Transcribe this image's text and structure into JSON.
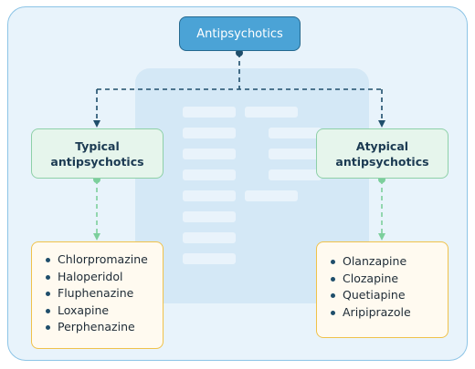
{
  "root": {
    "label": "Antipsychotics"
  },
  "categories": [
    {
      "label": "Typical\nantipsychotics",
      "drugs": [
        "Chlorpromazine",
        "Haloperidol",
        "Fluphenazine",
        "Loxapine",
        "Perphenazine"
      ]
    },
    {
      "label": "Atypical\nantipsychotics",
      "drugs": [
        "Olanzapine",
        "Clozapine",
        "Quetiapine",
        "Aripiprazole"
      ]
    }
  ],
  "colors": {
    "root_fill": "#4ba3d6",
    "root_border": "#26698f",
    "category_fill": "#e6f5ec",
    "category_border": "#8ed0a8",
    "list_fill": "#fffaf0",
    "list_border": "#f0c24a",
    "dark_connector": "#1f4e6b",
    "green_connector": "#7ccf9c"
  }
}
